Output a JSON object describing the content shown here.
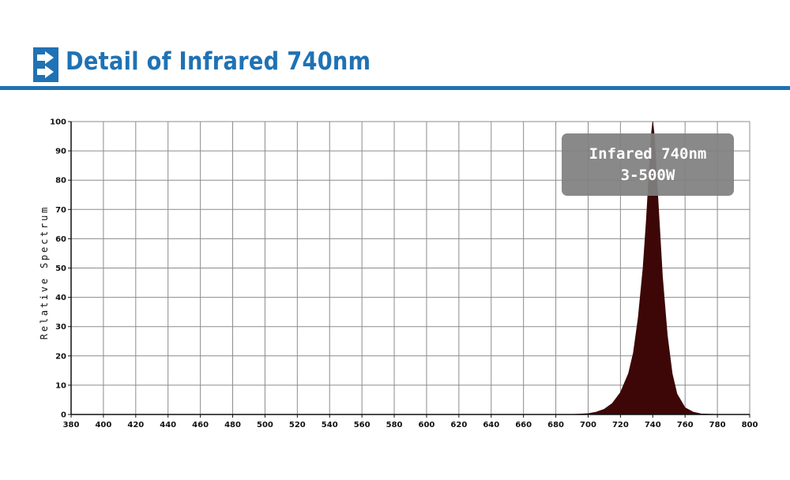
{
  "header": {
    "title": "Detail of Infrared 740nm",
    "icon": "double-arrow-right-icon",
    "accent_color": "#1f72b4"
  },
  "chart_data": {
    "type": "area",
    "title": "",
    "xlabel": "",
    "ylabel": "Relative Spectrum",
    "xlim": [
      380,
      800
    ],
    "ylim": [
      0,
      100
    ],
    "x_ticks": [
      380,
      400,
      420,
      440,
      460,
      480,
      500,
      520,
      540,
      560,
      580,
      600,
      620,
      640,
      660,
      680,
      700,
      720,
      740,
      760,
      780,
      800
    ],
    "y_ticks": [
      0,
      10,
      20,
      30,
      40,
      50,
      60,
      70,
      80,
      90,
      100
    ],
    "grid": true,
    "series": [
      {
        "color": "#3d0707",
        "x": [
          690,
          700,
          705,
          710,
          715,
          720,
          725,
          728,
          731,
          734,
          736,
          738,
          739,
          740,
          741,
          742,
          744,
          746,
          749,
          752,
          755,
          760,
          765,
          770,
          780
        ],
        "y": [
          0,
          0.3,
          0.8,
          1.8,
          3.8,
          7.5,
          14,
          21,
          33,
          50,
          66,
          85,
          95,
          100,
          95,
          85,
          66,
          47,
          27,
          14,
          7,
          2.3,
          0.8,
          0.2,
          0
        ]
      }
    ],
    "annotation": {
      "line1": "Infared 740nm",
      "line2": "3-500W"
    }
  }
}
